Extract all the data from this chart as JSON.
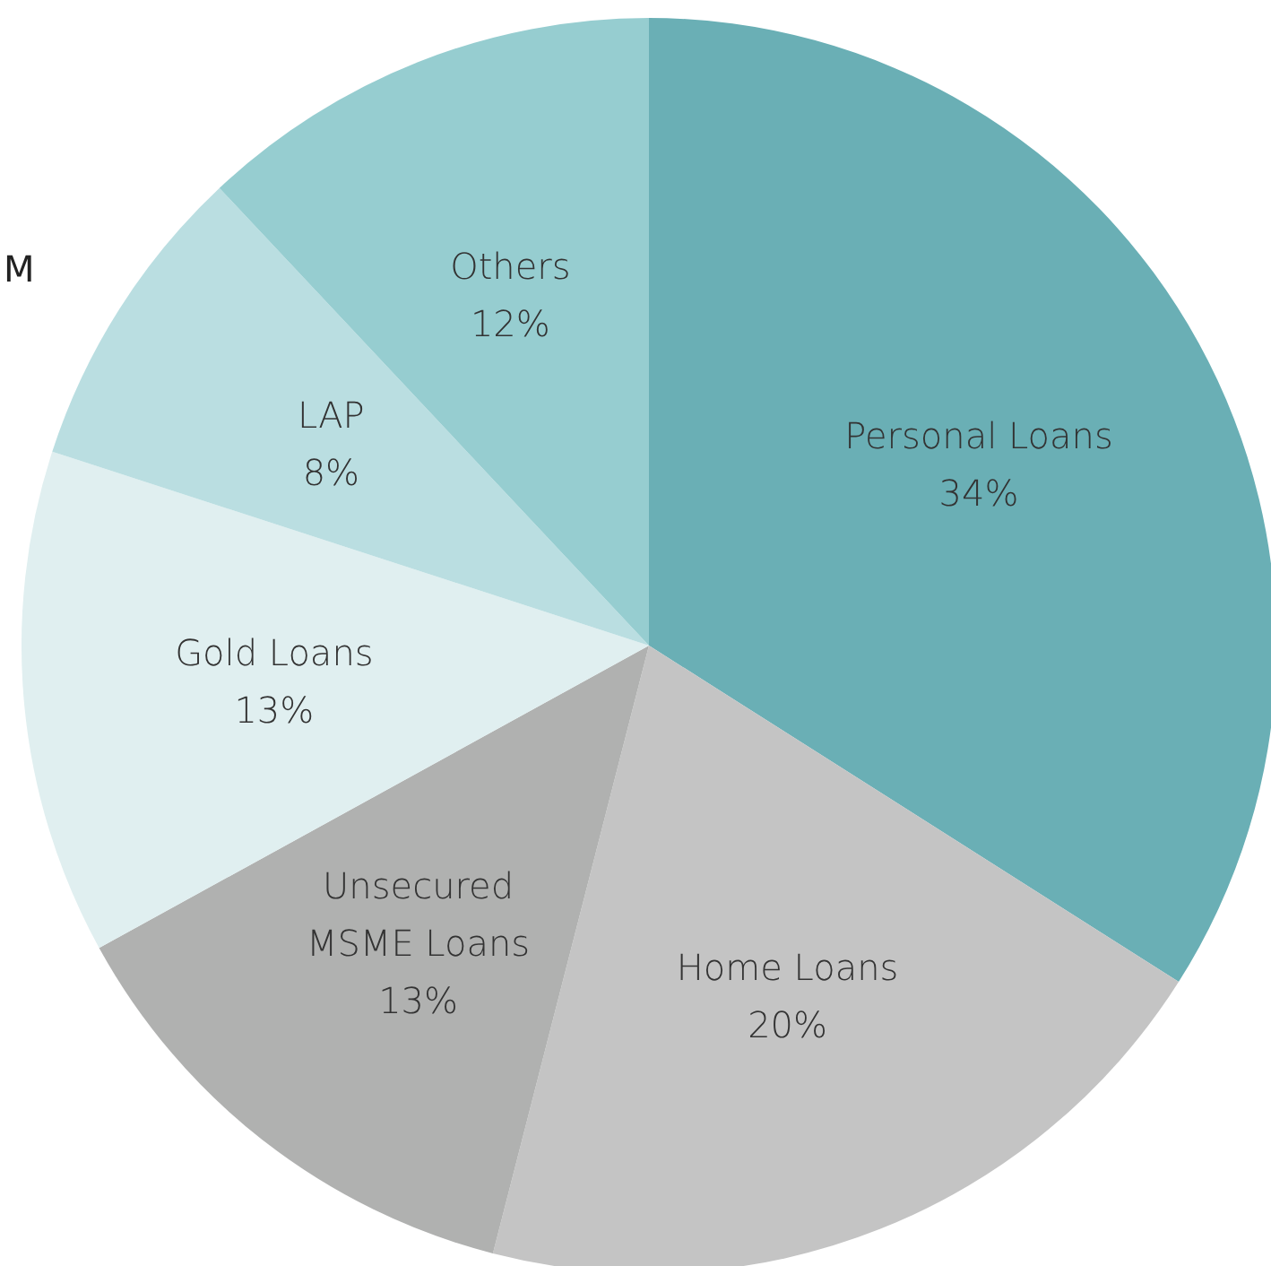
{
  "chart_data": {
    "type": "pie",
    "categories": [
      "Personal Loans",
      "Home Loans",
      "Unsecured\nMSME Loans",
      "Gold Loans",
      "LAP",
      "Others"
    ],
    "values": [
      34,
      20,
      13,
      13,
      8,
      12
    ],
    "colors": [
      "#6aafb5",
      "#c4c4c4",
      "#b0b1b0",
      "#e0eff0",
      "#badee1",
      "#96cdd0"
    ],
    "value_labels": [
      "34%",
      "20%",
      "13%",
      "13%",
      "8%",
      "12%"
    ],
    "annotations": [
      "M"
    ]
  }
}
